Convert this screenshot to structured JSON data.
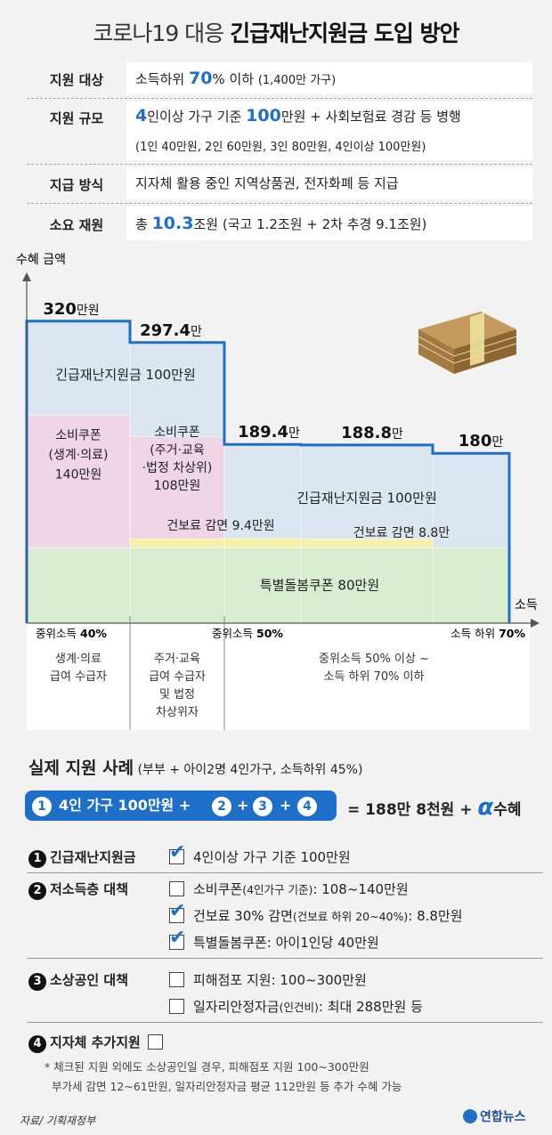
{
  "title": {
    "pre": "코로나19 대응 ",
    "bold": "긴급재난지원금 도입 방안"
  },
  "info": [
    {
      "label": "지원 대상",
      "pre": "소득하위 ",
      "big": "70",
      "post": "% 이하 ",
      "small": "(1,400만 가구)"
    },
    {
      "label": "지원 규모",
      "big": "4",
      "mid": "인이상 가구 기준 ",
      "big2": "100",
      "post": "만원 + 사회보험료 경감 등 병행",
      "line2": "(1인 40만원, 2인 60만원, 3인 80만원, 4인이상 100만원)"
    },
    {
      "label": "지급 방식",
      "text": "지자체 활용 중인 지역상품권, 전자화폐 등 지급"
    },
    {
      "label": "소요 재원",
      "pre": "총 ",
      "big": "10.3",
      "post": "조원 (국고 1.2조원 + 2차 추경 9.1조원)"
    }
  ],
  "chart_data": {
    "type": "area",
    "ylabel": "수혜 금액",
    "xlabel": "소득",
    "x_ticks": [
      {
        "pre": "중위소득 ",
        "bold": "40%"
      },
      {
        "pre": "중위소득 ",
        "bold": "50%"
      },
      {
        "pre": "소득 하위 ",
        "bold": "70%"
      }
    ],
    "segments": [
      {
        "key": "s1",
        "total": 320,
        "label_big": "320",
        "label_unit": "만원",
        "components": {
          "돌봄": 80,
          "소비쿠폰": 140,
          "긴급": 100
        }
      },
      {
        "key": "s2",
        "total": 297.4,
        "label_big": "297.4",
        "label_unit": "만",
        "components": {
          "돌봄": 80,
          "건보료": 9.4,
          "소비쿠폰": 108,
          "긴급": 100
        }
      },
      {
        "key": "s3",
        "total": 189.4,
        "label_big": "189.4",
        "label_unit": "만",
        "components": {
          "돌봄": 80,
          "건보료": 9.4,
          "긴급": 100
        }
      },
      {
        "key": "s4",
        "total": 188.8,
        "label_big": "188.8",
        "label_unit": "만",
        "components": {
          "돌봄": 80,
          "건보료": 8.8,
          "긴급": 100
        }
      },
      {
        "key": "s5",
        "total": 180,
        "label_big": "180",
        "label_unit": "만",
        "components": {
          "돌봄": 80,
          "긴급": 100
        }
      }
    ],
    "region_labels": {
      "emergency1": "긴급재난지원금 100만원",
      "emergency2": "긴급재난지원금 100만원",
      "coupon1": [
        "소비쿠폰",
        "(생계·의료)",
        "140만원"
      ],
      "coupon2": [
        "소비쿠폰",
        "(주거·교육",
        "·법정 차상위)",
        "108만원"
      ],
      "insurance1": "건보료 감면 9.4만원",
      "insurance2": "건보료 감면 8.8만",
      "care": "특별돌봄쿠폰 80만원"
    },
    "group_labels": [
      [
        "생계·의료",
        "급여 수급자"
      ],
      [
        "주거·교육",
        "급여 수급자",
        "및 법정",
        "차상위자"
      ],
      [
        "중위소득 50% 이상 ~",
        "소득 하위 70% 이하"
      ]
    ],
    "colors": {
      "emergency": "#dbe6f0",
      "coupon": "#efd5e6",
      "insurance": "#f6f1a8",
      "care": "#d8ecd0",
      "outline": "#1e6fc9"
    }
  },
  "cases": {
    "title": "실제 지원 사례",
    "subtitle": " (부부 + 아이2명 4인가구, 소득하위 45%)",
    "formula": {
      "n1": "1",
      "t1": "4인 가구 100만원 +",
      "n2": "2",
      "plus1": "+",
      "n3": "3",
      "plus2": "+",
      "n4": "4"
    },
    "result": {
      "text": "= 188만 8천원 + ",
      "alpha": "α",
      "tail": "수혜"
    },
    "sections": [
      {
        "num": "1",
        "title": "긴급재난지원금",
        "items": [
          {
            "checked": true,
            "text": "4인이상 가구 기준 100만원"
          }
        ]
      },
      {
        "num": "2",
        "title": "저소득층 대책",
        "items": [
          {
            "checked": false,
            "text": "소비쿠폰",
            "small": "(4인가구 기준)",
            "tail": ": 108~140만원"
          },
          {
            "checked": true,
            "text": "건보료 30% 감면",
            "small": "(건보료 하위 20~40%)",
            "tail": ": 8.8만원"
          },
          {
            "checked": true,
            "text": "특별돌봄쿠폰: 아이1인당 40만원"
          }
        ]
      },
      {
        "num": "3",
        "title": "소상공인 대책",
        "items": [
          {
            "checked": false,
            "text": "피해점포 지원: 100~300만원"
          },
          {
            "checked": false,
            "text": "일자리안정자금",
            "small": "(인건비)",
            "tail": ": 최대 288만원 등"
          }
        ]
      },
      {
        "num": "4",
        "title": "지자체 추가지원",
        "items": []
      }
    ],
    "notes": [
      "* 체크된 지원 외에도 소상공인일 경우, 피해점포 지원 100~300만원",
      "부가세 감면 12~61만원, 일자리안정자금 평균 112만원 등 추가 수혜 가능"
    ]
  },
  "source": "자료/ 기획재정부",
  "logo": "연합뉴스"
}
